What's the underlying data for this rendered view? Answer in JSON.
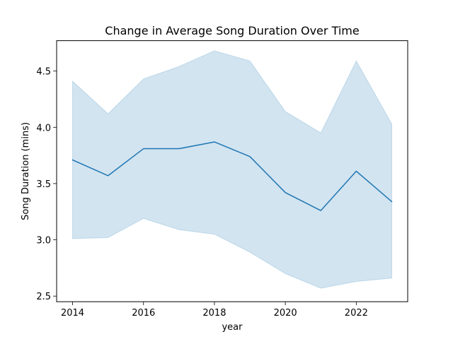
{
  "chart_data": {
    "type": "line",
    "title": "Change in Average Song Duration Over Time",
    "xlabel": "year",
    "ylabel": "Song Duration (mins)",
    "x": [
      2014,
      2015,
      2016,
      2017,
      2018,
      2019,
      2020,
      2021,
      2022,
      2023
    ],
    "series": [
      {
        "values": [
          3.71,
          3.57,
          3.81,
          3.81,
          3.87,
          3.74,
          3.42,
          3.26,
          3.61,
          3.34
        ],
        "ci_upper": [
          4.41,
          4.12,
          4.43,
          4.54,
          4.68,
          4.59,
          4.14,
          3.95,
          4.59,
          4.03
        ],
        "ci_lower": [
          3.01,
          3.02,
          3.19,
          3.09,
          3.05,
          2.89,
          2.7,
          2.57,
          2.63,
          2.66
        ],
        "color": "#1f77b4",
        "band_color": "#1f77b4"
      }
    ],
    "xlim": [
      2013.55,
      2023.45
    ],
    "ylim": [
      2.45,
      4.77
    ],
    "xticks": [
      2014,
      2016,
      2018,
      2020,
      2022
    ],
    "xtick_labels": [
      "2014",
      "2016",
      "2018",
      "2020",
      "2022"
    ],
    "yticks": [
      2.5,
      3.0,
      3.5,
      4.0,
      4.5
    ],
    "ytick_labels": [
      "2.5",
      "3.0",
      "3.5",
      "4.0",
      "4.5"
    ],
    "grid": false,
    "legend": false
  }
}
